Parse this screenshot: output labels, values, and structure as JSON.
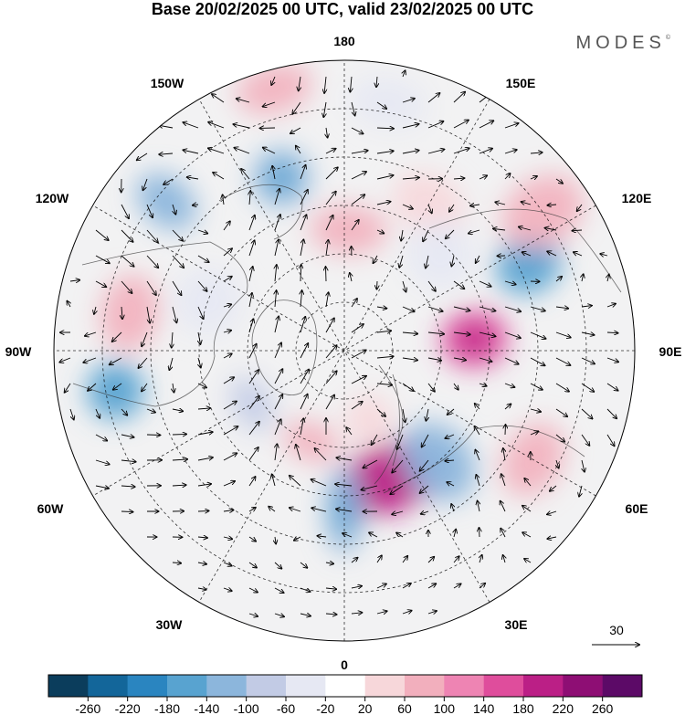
{
  "title": "Base 20/02/2025 00 UTC, valid 23/02/2025 00 UTC",
  "brand": "MODES",
  "brand_mark": "©",
  "longitude_labels": {
    "top": "180",
    "bottom": "0",
    "left": "90W",
    "right": "90E",
    "upper_left": "150W",
    "upper_left2": "120W",
    "upper_right": "150E",
    "upper_right2": "120E",
    "lower_left": "60W",
    "lower_left2": "30W",
    "lower_right": "60E",
    "lower_right2": "30E"
  },
  "vector_key": {
    "label": "30"
  },
  "colorbar": {
    "ticks": [
      "-260",
      "-220",
      "-180",
      "-140",
      "-100",
      "-60",
      "-20",
      "20",
      "60",
      "100",
      "140",
      "180",
      "220",
      "260"
    ],
    "colors": [
      "#0b3d5c",
      "#13669a",
      "#2a85c0",
      "#58a3d0",
      "#8cb6dc",
      "#c2cbe5",
      "#e6e8f3",
      "#ffffff",
      "#f7d7da",
      "#f2afbd",
      "#ee84b3",
      "#df4d9c",
      "#bb1f86",
      "#8e0e74",
      "#5c0a67"
    ]
  },
  "anomalies": [
    {
      "lon": 20,
      "colat": 28,
      "value": 190,
      "rx": 12,
      "ry": 7
    },
    {
      "lon": 115,
      "colat": 42,
      "value": -150,
      "rx": 6,
      "ry": 7
    },
    {
      "lon": -80,
      "colat": 48,
      "value": -150,
      "rx": 6,
      "ry": 6
    },
    {
      "lon": 40,
      "colat": 30,
      "value": -120,
      "rx": 7,
      "ry": 9
    },
    {
      "lon": 95,
      "colat": 27,
      "value": 170,
      "rx": 6,
      "ry": 7
    },
    {
      "lon": 0,
      "colat": 33,
      "value": -140,
      "rx": 4,
      "ry": 9
    },
    {
      "lon": -160,
      "colat": 38,
      "value": -140,
      "rx": 6,
      "ry": 6
    },
    {
      "lon": 178,
      "colat": 25,
      "value": 70,
      "rx": 8,
      "ry": 5
    },
    {
      "lon": -130,
      "colat": 48,
      "value": -120,
      "rx": 5,
      "ry": 7
    },
    {
      "lon": -165,
      "colat": 56,
      "value": 80,
      "rx": 8,
      "ry": 5
    },
    {
      "lon": 150,
      "colat": 35,
      "value": 40,
      "rx": 8,
      "ry": 6
    },
    {
      "lon": 135,
      "colat": 28,
      "value": -60,
      "rx": 7,
      "ry": 7
    },
    {
      "lon": 125,
      "colat": 50,
      "value": 80,
      "rx": 7,
      "ry": 9
    },
    {
      "lon": -100,
      "colat": 45,
      "value": 60,
      "rx": 8,
      "ry": 6
    },
    {
      "lon": -60,
      "colat": 22,
      "value": -80,
      "rx": 6,
      "ry": 4
    },
    {
      "lon": -20,
      "colat": 20,
      "value": 80,
      "rx": 6,
      "ry": 4
    },
    {
      "lon": 60,
      "colat": 45,
      "value": 80,
      "rx": 8,
      "ry": 6
    },
    {
      "lon": 20,
      "colat": 15,
      "value": 50,
      "rx": 5,
      "ry": 5
    },
    {
      "lon": -110,
      "colat": 30,
      "value": -60,
      "rx": 7,
      "ry": 7
    },
    {
      "lon": 170,
      "colat": 52,
      "value": -40,
      "rx": 8,
      "ry": 5
    }
  ]
}
